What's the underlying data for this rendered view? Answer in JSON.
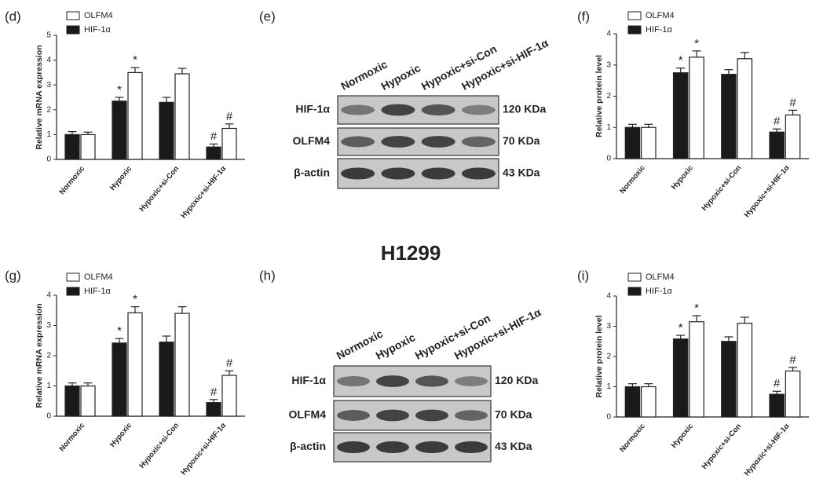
{
  "title": "H1299",
  "chart_data": [
    {
      "type": "bar",
      "label": "(d)",
      "ylabel": "Relative mRNA expression",
      "categories": [
        "Normoxic",
        "Hypoxic",
        "Hypoxic+si-Con",
        "Hypoxic+si-HIF-1α"
      ],
      "ylim": [
        0,
        5
      ],
      "yticks": [
        0,
        1,
        2,
        3,
        4,
        5
      ],
      "series": [
        {
          "name": "OLFM4",
          "color": "#ffffff",
          "values": [
            1.0,
            3.5,
            3.45,
            1.25
          ],
          "errors": [
            0.1,
            0.2,
            0.22,
            0.18
          ],
          "markers": [
            null,
            "*",
            null,
            "#"
          ]
        },
        {
          "name": "HIF-1α",
          "color": "#1a1a1a",
          "values": [
            1.0,
            2.35,
            2.3,
            0.5
          ],
          "errors": [
            0.12,
            0.15,
            0.2,
            0.12
          ],
          "markers": [
            null,
            "*",
            null,
            "#"
          ]
        }
      ]
    },
    {
      "type": "bar",
      "label": "(f)",
      "ylabel": "Relative protein level",
      "categories": [
        "Normoxic",
        "Hypoxic",
        "Hypoxic+si-Con",
        "Hypoxic+si-HIF-1α"
      ],
      "ylim": [
        0,
        4
      ],
      "yticks": [
        0,
        1,
        2,
        3,
        4
      ],
      "series": [
        {
          "name": "OLFM4",
          "color": "#ffffff",
          "values": [
            1.0,
            3.25,
            3.2,
            1.4
          ],
          "errors": [
            0.1,
            0.2,
            0.2,
            0.15
          ],
          "markers": [
            null,
            "*",
            null,
            "#"
          ]
        },
        {
          "name": "HIF-1α",
          "color": "#1a1a1a",
          "values": [
            1.0,
            2.75,
            2.7,
            0.85
          ],
          "errors": [
            0.1,
            0.15,
            0.15,
            0.1
          ],
          "markers": [
            null,
            "*",
            null,
            "#"
          ]
        }
      ]
    },
    {
      "type": "bar",
      "label": "(g)",
      "ylabel": "Relative mRNA expression",
      "categories": [
        "Normoxic",
        "Hypoxic",
        "Hypoxic+si-Con",
        "Hypoxic+si-HIF-1α"
      ],
      "ylim": [
        0,
        4
      ],
      "yticks": [
        0,
        1,
        2,
        3,
        4
      ],
      "series": [
        {
          "name": "OLFM4",
          "color": "#ffffff",
          "values": [
            1.0,
            3.42,
            3.4,
            1.35
          ],
          "errors": [
            0.1,
            0.2,
            0.22,
            0.15
          ],
          "markers": [
            null,
            "*",
            null,
            "#"
          ]
        },
        {
          "name": "HIF-1α",
          "color": "#1a1a1a",
          "values": [
            1.0,
            2.42,
            2.45,
            0.45
          ],
          "errors": [
            0.1,
            0.15,
            0.2,
            0.1
          ],
          "markers": [
            null,
            "*",
            null,
            "#"
          ]
        }
      ]
    },
    {
      "type": "bar",
      "label": "(i)",
      "ylabel": "Relative protein level",
      "categories": [
        "Normoxic",
        "Hypoxic",
        "Hypoxic+si-Con",
        "Hypoxic+si-HIF-1α"
      ],
      "ylim": [
        0,
        4
      ],
      "yticks": [
        0,
        1,
        2,
        3,
        4
      ],
      "series": [
        {
          "name": "OLFM4",
          "color": "#ffffff",
          "values": [
            1.0,
            3.15,
            3.1,
            1.52
          ],
          "errors": [
            0.1,
            0.2,
            0.2,
            0.12
          ],
          "markers": [
            null,
            "*",
            null,
            "#"
          ]
        },
        {
          "name": "HIF-1α",
          "color": "#1a1a1a",
          "values": [
            1.0,
            2.58,
            2.5,
            0.75
          ],
          "errors": [
            0.1,
            0.12,
            0.15,
            0.1
          ],
          "markers": [
            null,
            "*",
            null,
            "#"
          ]
        }
      ]
    }
  ],
  "blots": [
    {
      "label": "(e)",
      "lanes": [
        "Normoxic",
        "Hypoxic",
        "Hypoxic+si-Con",
        "Hypoxic+si-HIF-1α"
      ],
      "rows": [
        {
          "name": "HIF-1α",
          "size": "120 KDa"
        },
        {
          "name": "OLFM4",
          "size": "70 KDa"
        },
        {
          "name": "β-actin",
          "size": "43 KDa"
        }
      ]
    },
    {
      "label": "(h)",
      "lanes": [
        "Normoxic",
        "Hypoxic",
        "Hypoxic+si-Con",
        "Hypoxic+si-HIF-1α"
      ],
      "rows": [
        {
          "name": "HIF-1α",
          "size": "120 KDa"
        },
        {
          "name": "OLFM4",
          "size": "70 KDa"
        },
        {
          "name": "β-actin",
          "size": "43 KDa"
        }
      ]
    }
  ]
}
